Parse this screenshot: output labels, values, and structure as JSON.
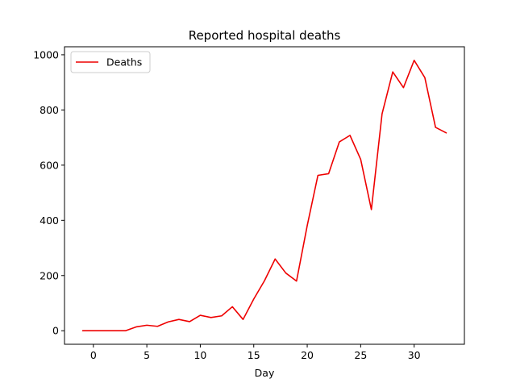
{
  "chart_data": {
    "type": "line",
    "title": "Reported hospital deaths",
    "xlabel": "Day",
    "ylabel": "",
    "xlim": [
      -2.7,
      34.7
    ],
    "ylim": [
      -49,
      1029
    ],
    "xticks": [
      0,
      5,
      10,
      15,
      20,
      25,
      30
    ],
    "yticks": [
      0,
      200,
      400,
      600,
      800,
      1000
    ],
    "grid": false,
    "legend": "top-left",
    "series": [
      {
        "name": "Deaths",
        "color": "#ee0000",
        "x": [
          -1,
          0,
          1,
          2,
          3,
          4,
          5,
          6,
          7,
          8,
          9,
          10,
          11,
          12,
          13,
          14,
          15,
          16,
          17,
          18,
          19,
          20,
          21,
          22,
          23,
          24,
          25,
          26,
          27,
          28,
          29,
          30,
          31,
          32,
          33
        ],
        "y": [
          0,
          0,
          0,
          0,
          0,
          14,
          20,
          16,
          32,
          41,
          33,
          56,
          48,
          54,
          87,
          41,
          115,
          181,
          260,
          209,
          180,
          381,
          563,
          569,
          684,
          708,
          621,
          439,
          786,
          938,
          881,
          980,
          917,
          737,
          717
        ]
      }
    ]
  }
}
